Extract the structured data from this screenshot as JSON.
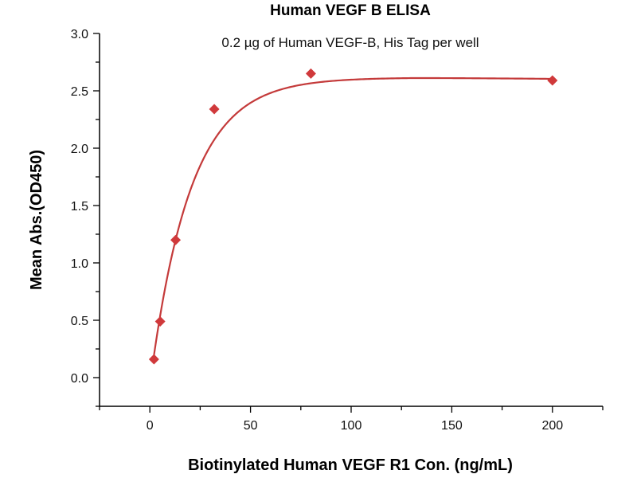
{
  "chart_data": {
    "type": "scatter",
    "title": "Human VEGF B ELISA",
    "subtitle": "0.2 µg of Human VEGF-B, His Tag per well",
    "xlabel": "Biotinylated Human VEGF R1 Con. (ng/mL)",
    "ylabel": "Mean Abs.(OD450)",
    "xlim": [
      -25,
      225
    ],
    "ylim": [
      -0.25,
      3.0
    ],
    "xticks": [
      0,
      50,
      100,
      150,
      200
    ],
    "xtick_labels": [
      "0",
      "50",
      "100",
      "150",
      "200"
    ],
    "yticks": [
      0.0,
      0.5,
      1.0,
      1.5,
      2.0,
      2.5,
      3.0
    ],
    "ytick_labels": [
      "0.0",
      "0.5",
      "1.0",
      "1.5",
      "2.0",
      "2.5",
      "3.0"
    ],
    "grid": false,
    "series": [
      {
        "name": "Human VEGF B ELISA",
        "marker": "diamond",
        "color": "#d0393b",
        "x": [
          2.048,
          5.12,
          12.8,
          32,
          80,
          200
        ],
        "y": [
          0.16,
          0.49,
          1.2,
          2.34,
          2.65,
          2.59
        ]
      }
    ],
    "fit": {
      "color": "#c43a3a",
      "model": "saturation",
      "plateau": 2.615,
      "rate": 20,
      "offset": 0.5,
      "x_range": [
        2.048,
        200
      ]
    }
  }
}
